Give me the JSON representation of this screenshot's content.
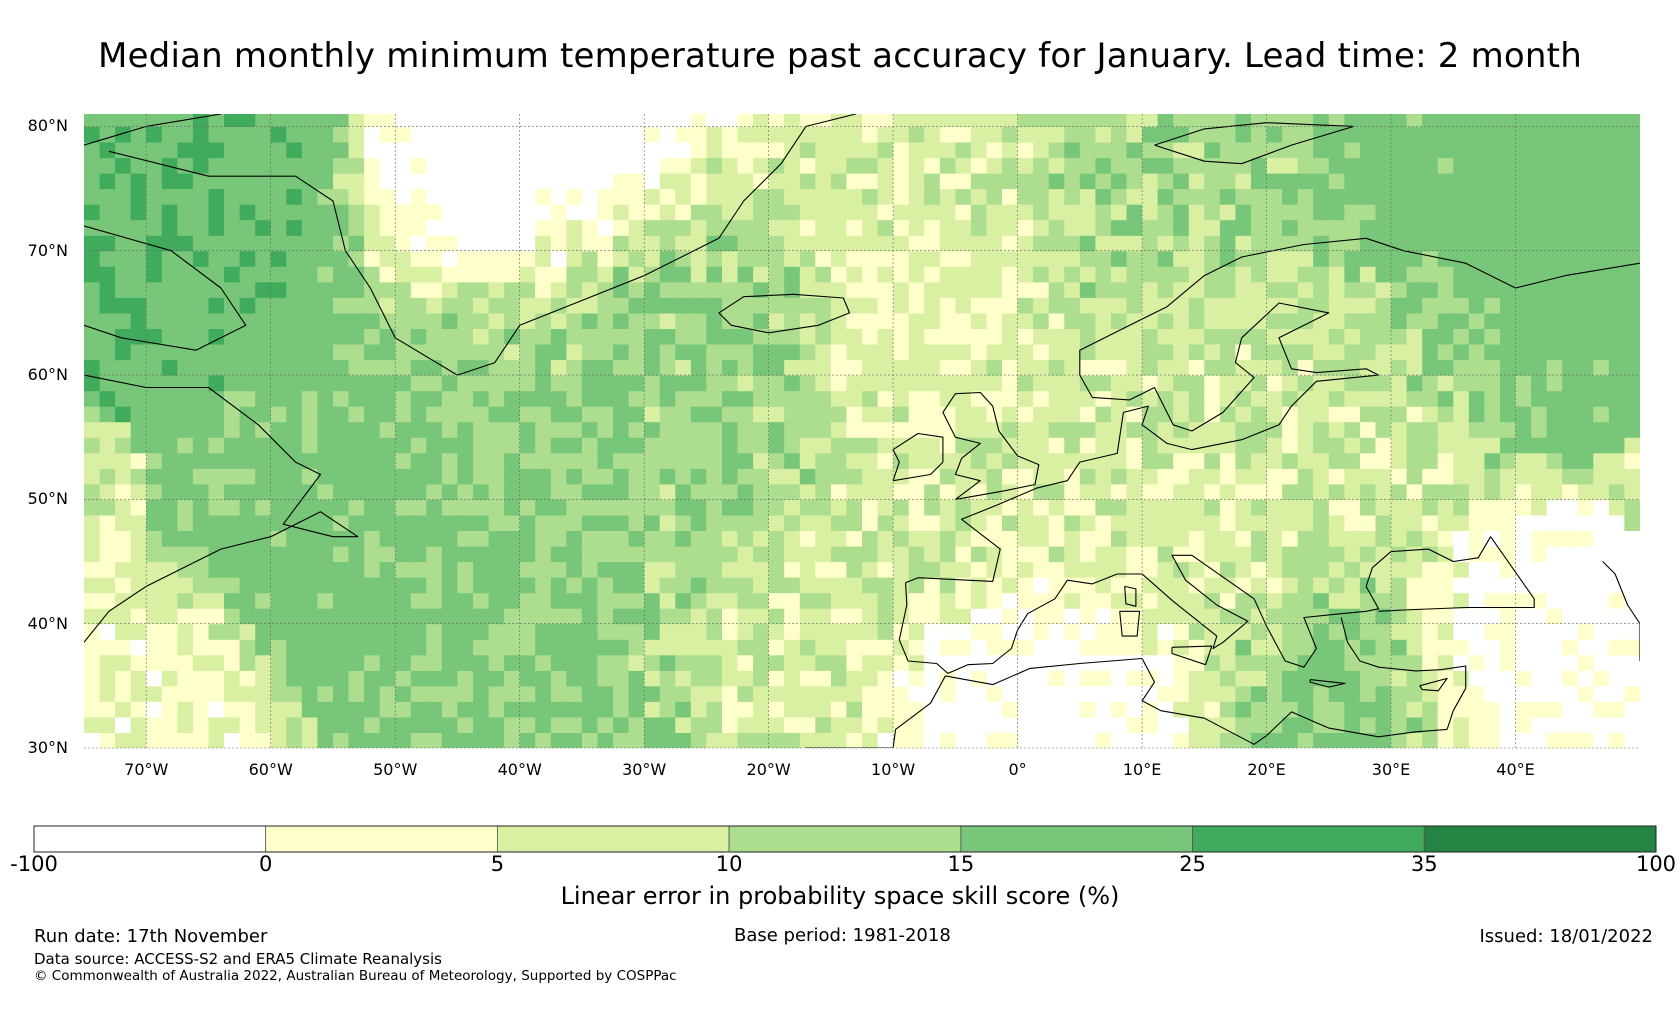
{
  "title": "Median monthly minimum temperature past accuracy for January. Lead time: 2 month",
  "map": {
    "lon_range": [
      -75,
      50
    ],
    "lat_range": [
      30,
      81
    ],
    "lat_ticks": [
      {
        "value": 30,
        "label": "30°N"
      },
      {
        "value": 40,
        "label": "40°N"
      },
      {
        "value": 50,
        "label": "50°N"
      },
      {
        "value": 60,
        "label": "60°N"
      },
      {
        "value": 70,
        "label": "70°N"
      },
      {
        "value": 80,
        "label": "80°N"
      }
    ],
    "lon_ticks": [
      {
        "value": -70,
        "label": "70°W"
      },
      {
        "value": -60,
        "label": "60°W"
      },
      {
        "value": -50,
        "label": "50°W"
      },
      {
        "value": -40,
        "label": "40°W"
      },
      {
        "value": -30,
        "label": "30°W"
      },
      {
        "value": -20,
        "label": "20°W"
      },
      {
        "value": -10,
        "label": "10°W"
      },
      {
        "value": 0,
        "label": "0°"
      },
      {
        "value": 10,
        "label": "10°E"
      },
      {
        "value": 20,
        "label": "20°E"
      },
      {
        "value": 30,
        "label": "30°E"
      },
      {
        "value": 40,
        "label": "40°E"
      }
    ]
  },
  "colorbar": {
    "label": "Linear error in probability space skill score (%)",
    "bins": [
      {
        "from": -100,
        "to": 0,
        "color": "#ffffff"
      },
      {
        "from": 0,
        "to": 5,
        "color": "#ffffcc"
      },
      {
        "from": 5,
        "to": 10,
        "color": "#d9f0a3"
      },
      {
        "from": 10,
        "to": 15,
        "color": "#addd8e"
      },
      {
        "from": 15,
        "to": 25,
        "color": "#78c679"
      },
      {
        "from": 25,
        "to": 35,
        "color": "#41ab5d"
      },
      {
        "from": 35,
        "to": 100,
        "color": "#238443"
      }
    ],
    "tick_labels": [
      "-100",
      "0",
      "5",
      "10",
      "15",
      "25",
      "35",
      "100"
    ]
  },
  "footer": {
    "run_date": "Run date: 17th November",
    "base_period": "Base period: 1981-2018",
    "issued": "Issued: 18/01/2022",
    "data_source": "Data source: ACCESS-S2 and ERA5 Climate Reanalysis",
    "copyright": "© Commonwealth of Australia 2022, Australian Bureau of Meteorology, Supported by COSPPac"
  }
}
